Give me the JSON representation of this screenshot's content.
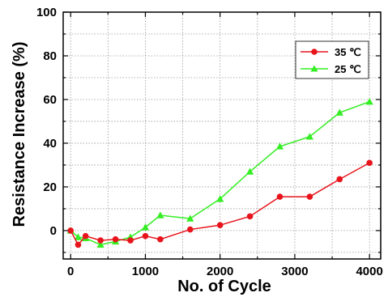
{
  "chart_data": {
    "type": "line",
    "xlabel": "No. of Cycle",
    "ylabel": "Resistance Increase (%)",
    "xlim": [
      -100,
      4150
    ],
    "ylim": [
      -13,
      100
    ],
    "xticks": [
      0,
      1000,
      2000,
      3000,
      4000
    ],
    "yticks": [
      0,
      20,
      40,
      60,
      80,
      100
    ],
    "x_minor_step": 500,
    "y_minor_step": 10,
    "grid": true,
    "legend_position": "upper-right",
    "series": [
      {
        "name": "35 ℃",
        "color": "#e8141c",
        "marker": "circle",
        "x": [
          0,
          100,
          200,
          400,
          600,
          800,
          1000,
          1200,
          1600,
          2000,
          2400,
          2800,
          3200,
          3600,
          4000
        ],
        "y": [
          0,
          -6.5,
          -2.5,
          -4.5,
          -4,
          -4.5,
          -2.5,
          -4,
          0.5,
          2.5,
          6.5,
          15.5,
          15.5,
          23.5,
          31
        ]
      },
      {
        "name": "25 ℃",
        "color": "#33ee22",
        "marker": "triangle",
        "x": [
          0,
          100,
          200,
          400,
          600,
          800,
          1000,
          1200,
          1600,
          2000,
          2400,
          2800,
          3200,
          3600,
          4000
        ],
        "y": [
          0,
          -3,
          -3.5,
          -6.5,
          -5,
          -3,
          1.5,
          7,
          5.5,
          14.5,
          27,
          38.5,
          43,
          54,
          59
        ]
      }
    ]
  }
}
